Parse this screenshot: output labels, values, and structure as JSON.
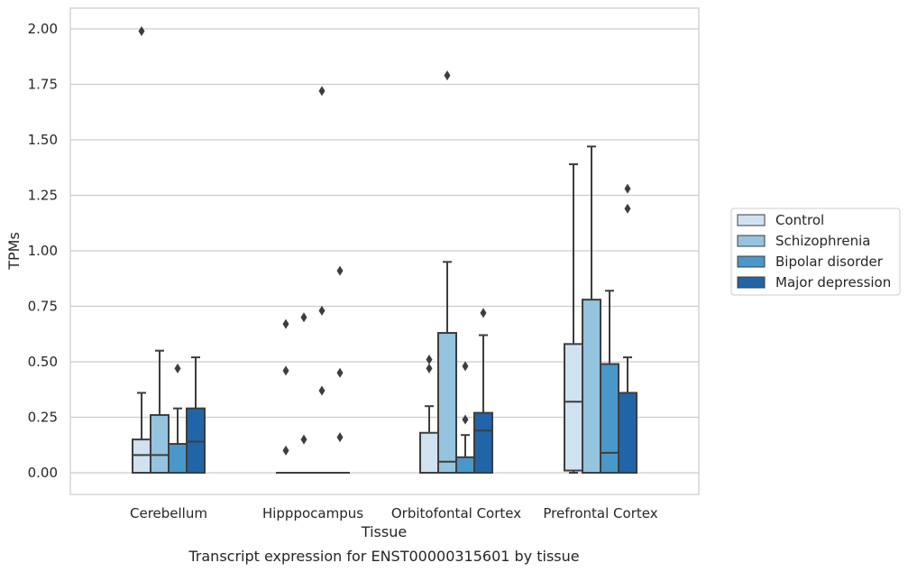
{
  "caption": "Transcript expression for ENST00000315601 by tissue",
  "chart_data": {
    "type": "box",
    "xlabel": "Tissue",
    "ylabel": "TPMs",
    "ylim": [
      -0.1,
      2.1
    ],
    "yticks": [
      "0.00",
      "0.25",
      "0.50",
      "0.75",
      "1.00",
      "1.25",
      "1.50",
      "1.75",
      "2.00"
    ],
    "grid": "horizontal",
    "legend_position": "right",
    "categories": [
      "Cerebellum",
      "Hipppocampus",
      "Orbitofontal Cortex",
      "Prefrontal Cortex"
    ],
    "series": [
      {
        "name": "Control",
        "color": "#d0e1f2",
        "boxes": [
          {
            "min": 0.0,
            "q1": 0.0,
            "median": 0.08,
            "q3": 0.15,
            "max": 0.36,
            "outliers": [
              1.99
            ]
          },
          {
            "min": 0.0,
            "q1": 0.0,
            "median": 0.0,
            "q3": 0.0,
            "max": 0.0,
            "outliers": [
              0.67,
              0.46,
              0.1
            ]
          },
          {
            "min": 0.0,
            "q1": 0.0,
            "median": 0.0,
            "q3": 0.18,
            "max": 0.3,
            "outliers": [
              0.51,
              0.47
            ]
          },
          {
            "min": 0.0,
            "q1": 0.01,
            "median": 0.32,
            "q3": 0.58,
            "max": 1.39,
            "outliers": []
          }
        ]
      },
      {
        "name": "Schizophrenia",
        "color": "#94c4df",
        "boxes": [
          {
            "min": 0.0,
            "q1": 0.0,
            "median": 0.08,
            "q3": 0.26,
            "max": 0.55,
            "outliers": []
          },
          {
            "min": 0.0,
            "q1": 0.0,
            "median": 0.0,
            "q3": 0.0,
            "max": 0.0,
            "outliers": [
              0.7,
              0.15
            ]
          },
          {
            "min": 0.0,
            "q1": 0.0,
            "median": 0.05,
            "q3": 0.63,
            "max": 0.95,
            "outliers": [
              1.79
            ]
          },
          {
            "min": 0.0,
            "q1": 0.0,
            "median": 0.0,
            "q3": 0.78,
            "max": 1.47,
            "outliers": []
          }
        ]
      },
      {
        "name": "Bipolar disorder",
        "color": "#4a98c9",
        "boxes": [
          {
            "min": 0.0,
            "q1": 0.0,
            "median": 0.13,
            "q3": 0.13,
            "max": 0.29,
            "outliers": [
              0.47
            ]
          },
          {
            "min": 0.0,
            "q1": 0.0,
            "median": 0.0,
            "q3": 0.0,
            "max": 0.0,
            "outliers": [
              1.72,
              0.73,
              0.37
            ]
          },
          {
            "min": 0.0,
            "q1": 0.0,
            "median": 0.0,
            "q3": 0.07,
            "max": 0.17,
            "outliers": [
              0.48,
              0.24
            ]
          },
          {
            "min": 0.0,
            "q1": 0.0,
            "median": 0.09,
            "q3": 0.49,
            "max": 0.82,
            "outliers": []
          }
        ]
      },
      {
        "name": "Major depression",
        "color": "#2165a8",
        "boxes": [
          {
            "min": 0.0,
            "q1": 0.0,
            "median": 0.14,
            "q3": 0.29,
            "max": 0.52,
            "outliers": []
          },
          {
            "min": 0.0,
            "q1": 0.0,
            "median": 0.0,
            "q3": 0.0,
            "max": 0.0,
            "outliers": [
              0.91,
              0.45,
              0.16
            ]
          },
          {
            "min": 0.0,
            "q1": 0.0,
            "median": 0.19,
            "q3": 0.27,
            "max": 0.62,
            "outliers": [
              0.72
            ]
          },
          {
            "min": 0.0,
            "q1": 0.0,
            "median": 0.0,
            "q3": 0.36,
            "max": 0.52,
            "outliers": [
              1.28,
              1.19
            ]
          }
        ]
      }
    ]
  }
}
